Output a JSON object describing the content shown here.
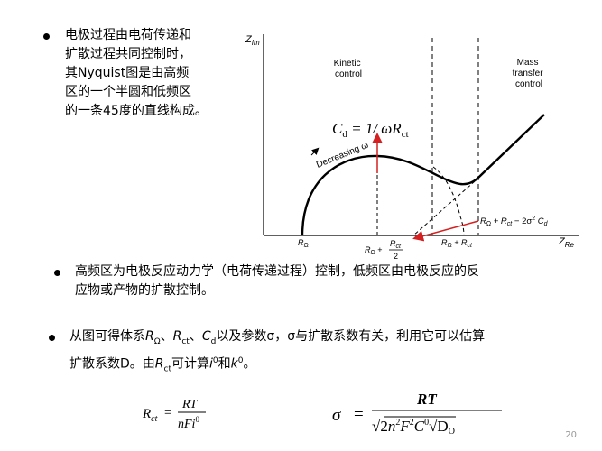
{
  "slide": {
    "bullet1_lines": [
      "电极过程由电荷传递和",
      "扩散过程共同控制时，",
      "其Nyquist图是由高频",
      "区的一个半圆和低频区",
      "的一条45度的直线构成。"
    ],
    "bullet2_lines": [
      "高频区为电极反应动力学（电荷传递过程）控制，低频区由电极反应的反",
      "应物或产物的扩散控制。"
    ],
    "bullet3": {
      "line1_pre": "从图可得体系",
      "r": "R",
      "omega_sub": "Ω",
      "sep1": "、",
      "rct": "R",
      "ct_sub": "ct",
      "sep2": "、",
      "cd": "C",
      "d_sub": "d",
      "line1_post": "以及参数σ，σ与扩散系数有关，利用它可以估算",
      "line2_pre": "扩散系数D。由",
      "line2_r": "R",
      "line2_ct": "ct",
      "line2_mid": "可计算",
      "line2_i": "i",
      "line2_sup0": "0",
      "line2_and": "和",
      "line2_k": "k",
      "line2_k0": "0",
      "line2_end": "。"
    },
    "page_number": "20"
  },
  "diagram": {
    "y_axis_label": "Z",
    "y_axis_sub": "Im",
    "x_axis_label": "Z",
    "x_axis_sub": "Re",
    "region_kinetic": [
      "Kinetic",
      "control"
    ],
    "region_mass": [
      "Mass",
      "transfer",
      "control"
    ],
    "cd_formula": "C",
    "cd_sub": "d",
    "cd_rest": " = 1/ ωR",
    "cd_rest_sub": "ct",
    "decreasing_label": "Decreasing ω",
    "label_r_omega": "R",
    "label_r_omega_sub": "Ω",
    "label_mid_pre": "R",
    "label_mid_sub": "Ω",
    "label_mid_plus": " + ",
    "label_mid_num": "R",
    "label_mid_num_sub": "ct",
    "label_mid_den": "2",
    "label_rr": "R",
    "label_rr_sub1": "Ω",
    "label_rr_plus": " + R",
    "label_rr_sub2": "ct",
    "label_intercept": "R",
    "label_intercept_sub1": "Ω",
    "label_intercept_mid": " + R",
    "label_intercept_sub2": "ct",
    "label_intercept_end": " − 2σ",
    "label_intercept_sup": "2",
    "label_intercept_c": " C",
    "label_intercept_c_sub": "d",
    "arrow_color": "#d42020"
  },
  "equations": {
    "rct_lhs": "R",
    "rct_lhs_sub": "ct",
    "eq": "=",
    "rct_num": "RT",
    "rct_den": "nFi",
    "rct_den_sup": "0",
    "sigma_lhs": "σ",
    "sigma_num": "RT",
    "sigma_den_pre": "√2",
    "sigma_den_n": "n",
    "sigma_den_n_sup": "2",
    "sigma_den_f": "F",
    "sigma_den_f_sup": "2",
    "sigma_den_c": "C",
    "sigma_den_c_sup": "0",
    "sigma_den_d": "√D",
    "sigma_den_d_sub": "O"
  }
}
